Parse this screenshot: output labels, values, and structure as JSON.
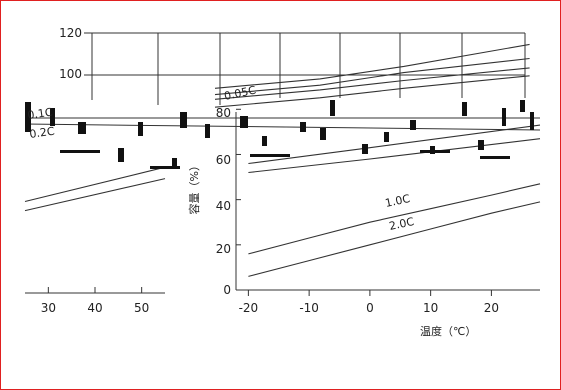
{
  "chart_data": {
    "type": "line",
    "title": "",
    "xlabel": "温度（℃）",
    "ylabel": "容量（%）",
    "panels": [
      {
        "id": "upper-right",
        "xlim": [
          -25,
          52
        ],
        "ylim": [
          60,
          125
        ],
        "yticks": [
          100,
          120
        ],
        "xgrid": [
          0,
          10,
          20,
          30,
          40,
          50
        ],
        "series": [
          {
            "name": "0.05C",
            "x": [
              -25,
              0,
              20,
              50
            ],
            "y": [
              84,
              90,
              98,
              112
            ]
          },
          {
            "name": "",
            "x": [
              -25,
              0,
              20,
              50
            ],
            "y": [
              80,
              86,
              94,
              103
            ]
          },
          {
            "name": "0.1C",
            "x": [
              -25,
              0,
              20,
              50
            ],
            "y": [
              77,
              83,
              89,
              97
            ]
          },
          {
            "name": "0.2C",
            "x": [
              -25,
              0,
              20,
              50
            ],
            "y": [
              72,
              78,
              84,
              92
            ]
          }
        ],
        "label_positions": {
          "0.05C": [
            18,
            88
          ],
          "0.1C": [
            -24,
            82
          ],
          "0.2C": [
            -21,
            77
          ]
        }
      },
      {
        "id": "lower-left",
        "xlim": [
          25,
          55
        ],
        "ylim": [
          0,
          80
        ],
        "xticks": [
          30,
          40,
          50
        ],
        "series": [
          {
            "name": "",
            "x": [
              25,
              55
            ],
            "y": [
              40,
              55
            ]
          },
          {
            "name": "",
            "x": [
              25,
              55
            ],
            "y": [
              36,
              50
            ]
          }
        ]
      },
      {
        "id": "lower-right",
        "xlim": [
          -25,
          28
        ],
        "ylim": [
          0,
          85
        ],
        "xticks": [
          -20,
          -10,
          0,
          10,
          20
        ],
        "yticks": [
          0,
          20,
          40,
          60,
          80
        ],
        "series": [
          {
            "name": "1.0C",
            "x": [
              -20,
              -10,
              0,
              10,
              20,
              28
            ],
            "y": [
              16,
              23,
              30,
              36,
              42,
              47
            ]
          },
          {
            "name": "2.0C",
            "x": [
              -20,
              -10,
              0,
              10,
              20,
              28
            ],
            "y": [
              6,
              13,
              20,
              27,
              34,
              39
            ]
          },
          {
            "name": "",
            "x": [
              -20,
              0,
              28
            ],
            "y": [
              56,
              63,
              73
            ]
          },
          {
            "name": "",
            "x": [
              -20,
              0,
              28
            ],
            "y": [
              52,
              58,
              67
            ]
          }
        ],
        "label_positions": {
          "1.0C": [
            5,
            44
          ],
          "2.0C": [
            5,
            32
          ]
        }
      }
    ],
    "upper_y_tick_labels": [
      "120",
      "100"
    ],
    "lower_y_tick_labels": [
      "80",
      "60",
      "40",
      "20",
      "0"
    ],
    "upper_series_labels": [
      "0.05C",
      "0.1C",
      "0.2C"
    ],
    "lower_series_labels": [
      "1.0C",
      "2.0C"
    ]
  }
}
